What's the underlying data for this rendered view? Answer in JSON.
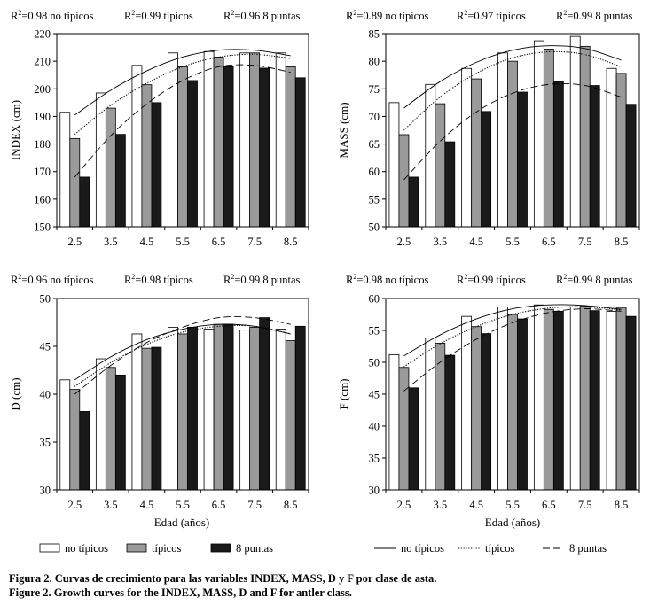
{
  "series_names": [
    "no típicos",
    "típicos",
    "8 puntas"
  ],
  "bar_colors": [
    "#ffffff",
    "#9a9a9a",
    "#1a1a1a"
  ],
  "categories": [
    "2.5",
    "3.5",
    "4.5",
    "5.5",
    "6.5",
    "7.5",
    "8.5"
  ],
  "chart_data": [
    {
      "type": "bar",
      "ylabel": "INDEX (cm)",
      "ylim": [
        150,
        220
      ],
      "yticks": [
        150,
        160,
        170,
        180,
        190,
        200,
        210,
        220
      ],
      "r2": [
        {
          "prefix": "R",
          "sup": "2",
          "value": "=0.98",
          "series": "no típicos"
        },
        {
          "prefix": "R",
          "sup": "2",
          "value": "=0.99",
          "series": "típicos"
        },
        {
          "prefix": "R",
          "sup": "2",
          "value": "=0.96",
          "series": "8 puntas"
        }
      ],
      "series": [
        {
          "name": "no típicos",
          "values": [
            191.5,
            198.5,
            208.5,
            213,
            213.5,
            213,
            213
          ]
        },
        {
          "name": "típicos",
          "values": [
            182,
            193,
            201.5,
            208,
            211.5,
            213,
            208
          ]
        },
        {
          "name": "8 puntas",
          "values": [
            168,
            183.5,
            195,
            203,
            208,
            207.5,
            204
          ]
        }
      ],
      "curves": [
        {
          "name": "no típicos",
          "points": [
            [
              2.5,
              190.5
            ],
            [
              3.5,
              199.5
            ],
            [
              4.5,
              206.5
            ],
            [
              5.5,
              211.5
            ],
            [
              6.5,
              214
            ],
            [
              7.5,
              214
            ],
            [
              8.5,
              212
            ]
          ]
        },
        {
          "name": "típicos",
          "points": [
            [
              2.5,
              183.5
            ],
            [
              3.5,
              194
            ],
            [
              4.5,
              202
            ],
            [
              5.5,
              208
            ],
            [
              6.5,
              211.5
            ],
            [
              7.5,
              212.5
            ],
            [
              8.5,
              211
            ]
          ]
        },
        {
          "name": "8 puntas",
          "points": [
            [
              2.5,
              168
            ],
            [
              3.5,
              183
            ],
            [
              4.5,
              194.5
            ],
            [
              5.5,
              203
            ],
            [
              6.5,
              208
            ],
            [
              7.5,
              208.5
            ],
            [
              8.5,
              206
            ]
          ]
        }
      ]
    },
    {
      "type": "bar",
      "ylabel": "MASS (cm)",
      "ylim": [
        50,
        85
      ],
      "yticks": [
        50,
        55,
        60,
        65,
        70,
        75,
        80,
        85
      ],
      "r2": [
        {
          "prefix": "R",
          "sup": "2",
          "value": "=0.89",
          "series": "no típicos"
        },
        {
          "prefix": "R",
          "sup": "2",
          "value": "=0.97",
          "series": "típicos"
        },
        {
          "prefix": "R",
          "sup": "2",
          "value": "=0.99",
          "series": "8 puntas"
        }
      ],
      "series": [
        {
          "name": "no típicos",
          "values": [
            72.5,
            75.8,
            78.7,
            81.5,
            83.7,
            84.5,
            78.7
          ]
        },
        {
          "name": "típicos",
          "values": [
            66.7,
            72.3,
            76.8,
            80,
            82.2,
            82.7,
            77.8
          ]
        },
        {
          "name": "8 puntas",
          "values": [
            59,
            65.4,
            70.9,
            74.4,
            76.3,
            75.6,
            72.2
          ]
        }
      ],
      "curves": [
        {
          "name": "no típicos",
          "points": [
            [
              2.5,
              71.5
            ],
            [
              3.5,
              76.3
            ],
            [
              4.5,
              79.8
            ],
            [
              5.5,
              82
            ],
            [
              6.5,
              82.8
            ],
            [
              7.5,
              82.3
            ],
            [
              8.5,
              80.2
            ]
          ]
        },
        {
          "name": "típicos",
          "points": [
            [
              2.5,
              67.5
            ],
            [
              3.5,
              73.5
            ],
            [
              4.5,
              77.8
            ],
            [
              5.5,
              80.6
            ],
            [
              6.5,
              81.7
            ],
            [
              7.5,
              81.2
            ],
            [
              8.5,
              79
            ]
          ]
        },
        {
          "name": "8 puntas",
          "points": [
            [
              2.5,
              58.5
            ],
            [
              3.5,
              65.5
            ],
            [
              4.5,
              70.8
            ],
            [
              5.5,
              74.2
            ],
            [
              6.5,
              75.8
            ],
            [
              7.5,
              75.6
            ],
            [
              8.5,
              73.5
            ]
          ]
        }
      ]
    },
    {
      "type": "bar",
      "ylabel": "D (cm)",
      "ylim": [
        30,
        50
      ],
      "yticks": [
        30,
        35,
        40,
        45,
        50
      ],
      "r2": [
        {
          "prefix": "R",
          "sup": "2",
          "value": "=0.96",
          "series": "no típicos"
        },
        {
          "prefix": "R",
          "sup": "2",
          "value": "=0.98",
          "series": "típicos"
        },
        {
          "prefix": "R",
          "sup": "2",
          "value": "=0.99",
          "series": "8 puntas"
        }
      ],
      "series": [
        {
          "name": "no típicos",
          "values": [
            41.5,
            43.7,
            46.3,
            47,
            46.8,
            46.7,
            46.8
          ]
        },
        {
          "name": "típicos",
          "values": [
            40.5,
            42.8,
            44.8,
            46.3,
            47.3,
            47,
            45.6
          ]
        },
        {
          "name": "8 puntas",
          "values": [
            38.2,
            42,
            44.9,
            47,
            47.3,
            48,
            47.1
          ]
        }
      ],
      "curves": [
        {
          "name": "no típicos",
          "points": [
            [
              2.5,
              41.5
            ],
            [
              3.5,
              43.9
            ],
            [
              4.5,
              45.7
            ],
            [
              5.5,
              46.8
            ],
            [
              6.5,
              47.3
            ],
            [
              7.5,
              47.1
            ],
            [
              8.5,
              46.3
            ]
          ]
        },
        {
          "name": "típicos",
          "points": [
            [
              2.5,
              40.8
            ],
            [
              3.5,
              43.3
            ],
            [
              4.5,
              45.2
            ],
            [
              5.5,
              46.5
            ],
            [
              6.5,
              47.1
            ],
            [
              7.5,
              47.1
            ],
            [
              8.5,
              46.3
            ]
          ]
        },
        {
          "name": "8 puntas",
          "points": [
            [
              2.5,
              40
            ],
            [
              3.5,
              43
            ],
            [
              4.5,
              45.4
            ],
            [
              5.5,
              47
            ],
            [
              6.5,
              48
            ],
            [
              7.5,
              48
            ],
            [
              8.5,
              47.3
            ]
          ]
        }
      ]
    },
    {
      "type": "bar",
      "ylabel": "F (cm)",
      "ylim": [
        30,
        60
      ],
      "yticks": [
        30,
        35,
        40,
        45,
        50,
        55,
        60
      ],
      "r2": [
        {
          "prefix": "R",
          "sup": "2",
          "value": "=0.98",
          "series": "no típicos"
        },
        {
          "prefix": "R",
          "sup": "2",
          "value": "=0.99",
          "series": "típicos"
        },
        {
          "prefix": "R",
          "sup": "2",
          "value": "=0.99",
          "series": "8 puntas"
        }
      ],
      "series": [
        {
          "name": "no típicos",
          "values": [
            51.2,
            53.8,
            57.2,
            58.7,
            59,
            58.7,
            58
          ]
        },
        {
          "name": "típicos",
          "values": [
            49.2,
            53,
            55.6,
            57.5,
            58.3,
            58.8,
            58.6
          ]
        },
        {
          "name": "8 puntas",
          "values": [
            46,
            51.1,
            54.5,
            56.8,
            58,
            58.1,
            57.2
          ]
        }
      ],
      "curves": [
        {
          "name": "no típicos",
          "points": [
            [
              2.5,
              51
            ],
            [
              3.5,
              54.3
            ],
            [
              4.5,
              56.8
            ],
            [
              5.5,
              58.4
            ],
            [
              6.5,
              59
            ],
            [
              7.5,
              58.9
            ],
            [
              8.5,
              58.3
            ]
          ]
        },
        {
          "name": "típicos",
          "points": [
            [
              2.5,
              49.3
            ],
            [
              3.5,
              52.9
            ],
            [
              4.5,
              55.6
            ],
            [
              5.5,
              57.5
            ],
            [
              6.5,
              58.5
            ],
            [
              7.5,
              58.7
            ],
            [
              8.5,
              58.2
            ]
          ]
        },
        {
          "name": "8 puntas",
          "points": [
            [
              2.5,
              45.5
            ],
            [
              3.5,
              50
            ],
            [
              4.5,
              53.6
            ],
            [
              5.5,
              56.2
            ],
            [
              6.5,
              57.8
            ],
            [
              7.5,
              58.4
            ],
            [
              8.5,
              58
            ]
          ]
        }
      ]
    }
  ],
  "xlabel": "Edad (años)",
  "legend_bars": [
    "no típicos",
    "típicos",
    "8 puntas"
  ],
  "legend_lines": [
    "no típicos",
    "típicos",
    "8 puntas"
  ],
  "caption_es": "Figura 2. Curvas de crecimiento para las variables INDEX, MASS, D y F por clase de asta.",
  "caption_en": "Figure 2. Growth curves for the INDEX, MASS, D and F for antler class."
}
